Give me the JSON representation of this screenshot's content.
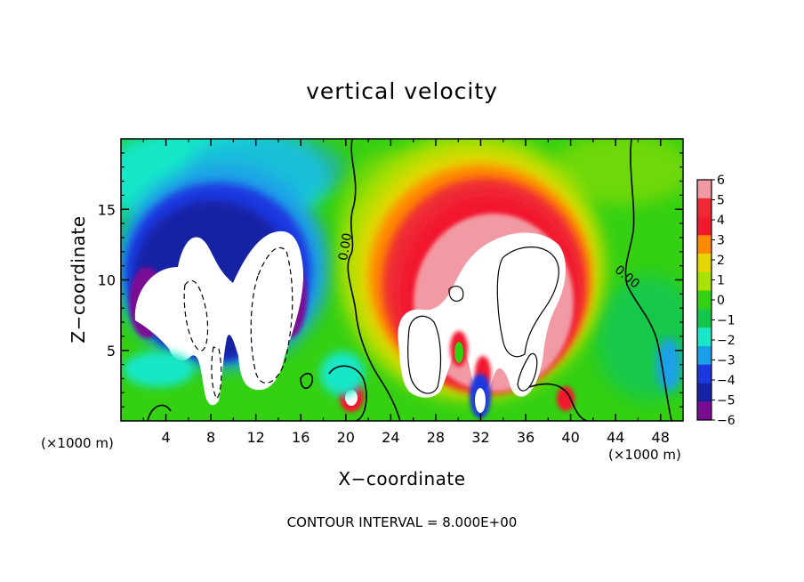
{
  "chart_data": {
    "type": "heatmap",
    "title": "vertical velocity",
    "xlabel": "X−coordinate",
    "ylabel": "Z−coordinate",
    "x_unit_left": "(×1000 m)",
    "x_unit_right": "(×1000 m)",
    "footer": "CONTOUR INTERVAL = 8.000E+00",
    "xlim": [
      0,
      50
    ],
    "ylim": [
      0,
      20
    ],
    "x_ticks": [
      4,
      8,
      12,
      16,
      20,
      24,
      28,
      32,
      36,
      40,
      44,
      48
    ],
    "y_ticks": [
      5,
      10,
      15
    ],
    "colorbar": {
      "ticks": [
        "6",
        "5",
        "4",
        "3",
        "2",
        "1",
        "0",
        "−1",
        "−2",
        "−3",
        "−4",
        "−5",
        "−6"
      ],
      "range": [
        -6,
        6
      ],
      "colors": [
        "#f29aa3",
        "#ef2a35",
        "#f2182e",
        "#ff8a00",
        "#e6d600",
        "#a8e000",
        "#34d012",
        "#12c84a",
        "#19e7c8",
        "#1aa0e8",
        "#1c39e0",
        "#1423a4",
        "#7a0c94"
      ]
    },
    "contour_labels": [
      {
        "text": "0.00",
        "x": 20.3,
        "y": 12.3
      },
      {
        "text": "0.00",
        "x": 44.8,
        "y": 10.0
      }
    ],
    "features": [
      {
        "kind": "updraft-core",
        "x": 31,
        "z": 8,
        "value_exceeds": 6
      },
      {
        "kind": "downdraft-core",
        "x": 9,
        "z": 8,
        "value_below": -6
      },
      {
        "kind": "updraft-anvil",
        "x": 33,
        "z": 16,
        "value": 4
      },
      {
        "kind": "downdraft-band",
        "x": 10,
        "z": 14,
        "value": -5
      }
    ]
  }
}
